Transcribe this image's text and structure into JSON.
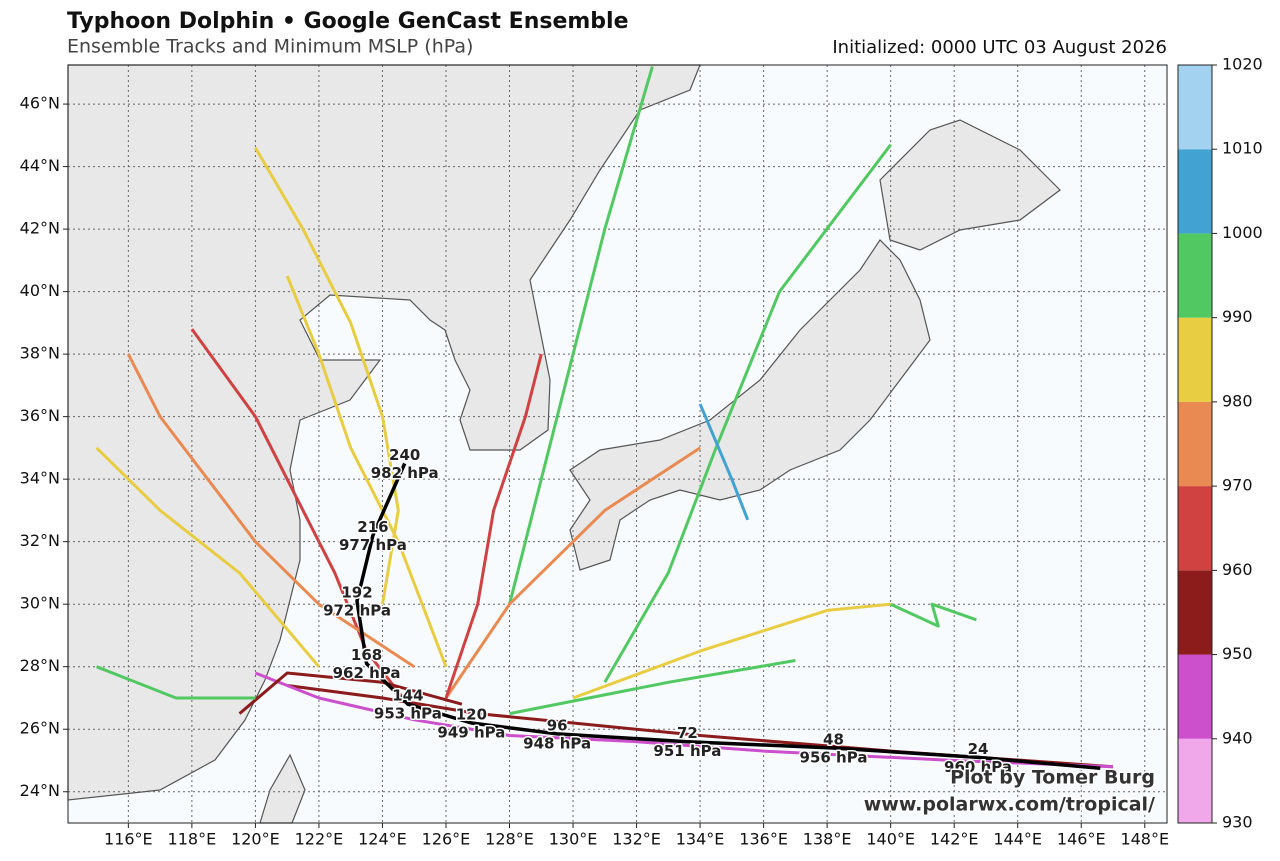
{
  "chart_data": {
    "type": "track",
    "title": "Typhoon Dolphin • Google GenCast Ensemble",
    "subtitle": "Ensemble Tracks and Minimum MSLP (hPa)",
    "initialized": "Initialized: 0000 UTC 03 August 2026",
    "credit": [
      "Plot by Tomer Burg",
      "www.polarwx.com/tropical/"
    ],
    "xlim": [
      114.1,
      148.7
    ],
    "ylim": [
      23.0,
      47.25
    ],
    "grid": true,
    "xticks": [
      {
        "value": 116,
        "label": "116°E"
      },
      {
        "value": 118,
        "label": "118°E"
      },
      {
        "value": 120,
        "label": "120°E"
      },
      {
        "value": 122,
        "label": "122°E"
      },
      {
        "value": 124,
        "label": "124°E"
      },
      {
        "value": 126,
        "label": "126°E"
      },
      {
        "value": 128,
        "label": "128°E"
      },
      {
        "value": 130,
        "label": "130°E"
      },
      {
        "value": 132,
        "label": "132°E"
      },
      {
        "value": 134,
        "label": "134°E"
      },
      {
        "value": 136,
        "label": "136°E"
      },
      {
        "value": 138,
        "label": "138°E"
      },
      {
        "value": 140,
        "label": "140°E"
      },
      {
        "value": 142,
        "label": "142°E"
      },
      {
        "value": 144,
        "label": "144°E"
      },
      {
        "value": 146,
        "label": "146°E"
      },
      {
        "value": 148,
        "label": "148°E"
      }
    ],
    "yticks": [
      {
        "value": 24,
        "label": "24°N"
      },
      {
        "value": 26,
        "label": "26°N"
      },
      {
        "value": 28,
        "label": "28°N"
      },
      {
        "value": 30,
        "label": "30°N"
      },
      {
        "value": 32,
        "label": "32°N"
      },
      {
        "value": 34,
        "label": "34°N"
      },
      {
        "value": 36,
        "label": "36°N"
      },
      {
        "value": 38,
        "label": "38°N"
      },
      {
        "value": 40,
        "label": "40°N"
      },
      {
        "value": 42,
        "label": "42°N"
      },
      {
        "value": 44,
        "label": "44°N"
      },
      {
        "value": 46,
        "label": "46°N"
      }
    ],
    "colorbar": {
      "levels": [
        930,
        940,
        950,
        960,
        970,
        980,
        990,
        1000,
        1010,
        1020
      ],
      "colors": [
        "#f0a8ea",
        "#cc4fcc",
        "#8c1c1c",
        "#d04242",
        "#e88a52",
        "#e8cc42",
        "#52c862",
        "#42a2d2",
        "#a2d2f0"
      ]
    },
    "series": [
      {
        "color": "#8c1c1c",
        "lon": [
          147,
          140,
          134,
          130,
          127,
          124,
          121
        ],
        "lat": [
          24.8,
          25.3,
          25.8,
          26.2,
          26.5,
          27.0,
          27.4
        ]
      },
      {
        "color": "#cc4fcc",
        "lon": [
          147,
          142,
          136,
          132,
          128,
          125,
          122,
          120
        ],
        "lat": [
          24.8,
          25.0,
          25.3,
          25.6,
          25.8,
          26.3,
          27.0,
          27.8
        ]
      },
      {
        "color": "#d04242",
        "lon": [
          124.8,
          123.5,
          122.5,
          121.5,
          120,
          118
        ],
        "lat": [
          26.8,
          28.5,
          31,
          33,
          36,
          38.8
        ]
      },
      {
        "color": "#e8cc42",
        "lon": [
          124,
          124.5,
          124,
          123,
          121.5,
          120
        ],
        "lat": [
          30,
          33,
          36,
          39,
          42,
          44.6
        ]
      },
      {
        "color": "#52c862",
        "lon": [
          131,
          133,
          134.5,
          136.5,
          140
        ],
        "lat": [
          27.5,
          31,
          35,
          40,
          44.7
        ]
      },
      {
        "color": "#42a2d2",
        "lon": [
          134,
          135,
          135.5
        ],
        "lat": [
          36.4,
          34,
          32.7
        ]
      },
      {
        "color": "#52c862",
        "lon": [
          128,
          129.5,
          131,
          132.5
        ],
        "lat": [
          30,
          36,
          42,
          47.2
        ]
      },
      {
        "color": "#e88a52",
        "lon": [
          125,
          122,
          120,
          118.5,
          117,
          116
        ],
        "lat": [
          28,
          30,
          32,
          34,
          36,
          38
        ]
      },
      {
        "color": "#e8cc42",
        "lon": [
          126,
          124.5,
          123,
          122,
          121
        ],
        "lat": [
          28,
          32,
          35,
          38,
          40.5
        ]
      },
      {
        "color": "#52c862",
        "lon": [
          128,
          133,
          137
        ],
        "lat": [
          26.5,
          27.5,
          28.2
        ]
      },
      {
        "color": "#e8cc42",
        "lon": [
          130,
          134,
          138,
          140
        ],
        "lat": [
          27,
          28.5,
          29.8,
          30
        ]
      },
      {
        "color": "#52c862",
        "lon": [
          140,
          141.5,
          141.3,
          142.7
        ],
        "lat": [
          30,
          29.3,
          30,
          29.5
        ]
      },
      {
        "color": "#e88a52",
        "lon": [
          126,
          128,
          131,
          134
        ],
        "lat": [
          27,
          30,
          33,
          35
        ]
      },
      {
        "color": "#8c1c1c",
        "lon": [
          126.5,
          124,
          121,
          119.5
        ],
        "lat": [
          26.8,
          27.5,
          27.8,
          26.5
        ]
      },
      {
        "color": "#d04242",
        "lon": [
          126,
          127,
          127.5,
          128.5,
          129
        ],
        "lat": [
          27,
          30,
          33,
          36,
          38
        ]
      },
      {
        "color": "#e8cc42",
        "lon": [
          122,
          119.5,
          117,
          115
        ],
        "lat": [
          28,
          31,
          33,
          35
        ]
      },
      {
        "color": "#52c862",
        "lon": [
          120,
          117.5,
          115
        ],
        "lat": [
          27,
          27,
          28
        ]
      }
    ],
    "mean_track": {
      "color": "#000000",
      "lon": [
        146.6,
        142.75,
        138.2,
        133.6,
        129.5,
        126.8,
        124.8,
        123.5,
        123.2,
        123.7,
        124.7
      ],
      "lat": [
        24.75,
        25.1,
        25.4,
        25.6,
        25.85,
        26.2,
        26.8,
        28.1,
        30.1,
        32.2,
        34.5
      ],
      "hours": [
        null,
        24,
        48,
        72,
        96,
        120,
        144,
        168,
        192,
        216,
        240
      ],
      "values": [
        null,
        960,
        956,
        951,
        948,
        949,
        953,
        962,
        972,
        977,
        982
      ],
      "value_labels": [
        null,
        "960 hPa",
        "956 hPa",
        "951 hPa",
        "948 hPa",
        "949 hPa",
        "953 hPa",
        "962 hPa",
        "972 hPa",
        "977 hPa",
        "982 hPa"
      ]
    }
  }
}
